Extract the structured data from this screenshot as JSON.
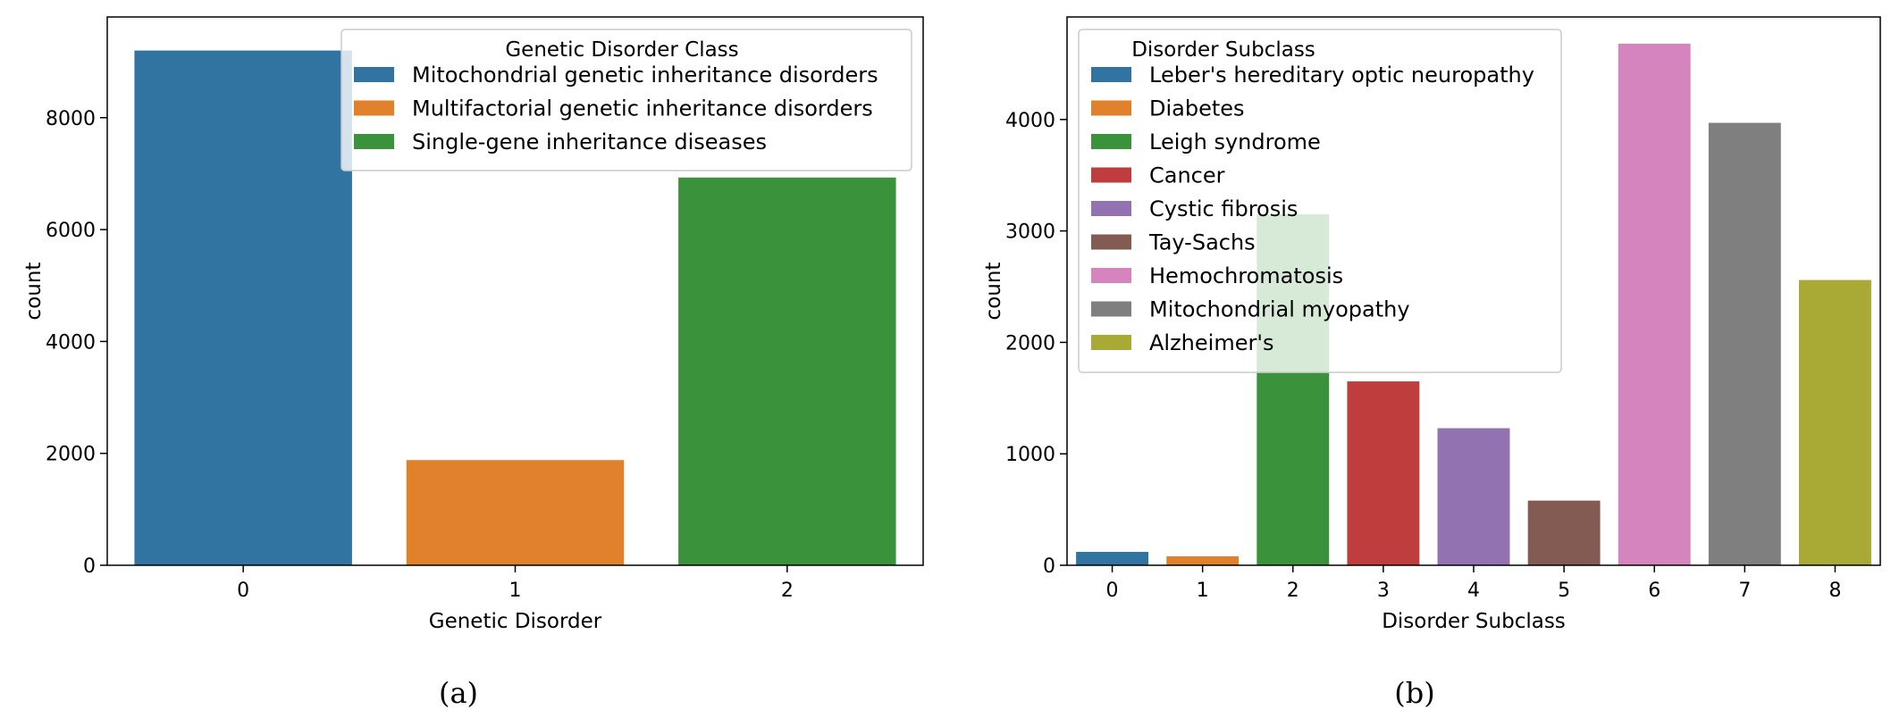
{
  "panels": [
    "(a)",
    "(b)"
  ],
  "chart_data": [
    {
      "type": "bar",
      "xlabel": "Genetic Disorder",
      "ylabel": "count",
      "categories": [
        "0",
        "1",
        "2"
      ],
      "values": [
        9200,
        1880,
        6930
      ],
      "colors": [
        "#3274a1",
        "#e1812c",
        "#3a923a"
      ],
      "ylim": [
        0,
        9800
      ],
      "yticks": [
        0,
        2000,
        4000,
        6000,
        8000
      ],
      "grid": false,
      "legend": {
        "title": "Genetic Disorder Class",
        "placement": "upper-right",
        "entries": [
          "Mitochondrial genetic inheritance disorders",
          "Multifactorial genetic inheritance disorders",
          "Single-gene inheritance diseases"
        ]
      }
    },
    {
      "type": "bar",
      "xlabel": "Disorder Subclass",
      "ylabel": "count",
      "categories": [
        "0",
        "1",
        "2",
        "3",
        "4",
        "5",
        "6",
        "7",
        "8"
      ],
      "values": [
        120,
        80,
        3150,
        1650,
        1230,
        580,
        4680,
        3970,
        2560
      ],
      "colors": [
        "#3274a1",
        "#e1812c",
        "#3a923a",
        "#c03d3e",
        "#9372b2",
        "#845b53",
        "#d684bd",
        "#7f7f7f",
        "#a9aa35"
      ],
      "ylim": [
        0,
        4920
      ],
      "yticks": [
        0,
        1000,
        2000,
        3000,
        4000
      ],
      "grid": false,
      "legend": {
        "title": "Disorder Subclass",
        "placement": "upper-left",
        "entries": [
          "Leber's hereditary optic neuropathy",
          "Diabetes",
          "Leigh syndrome",
          "Cancer",
          "Cystic fibrosis",
          "Tay-Sachs",
          "Hemochromatosis",
          "Mitochondrial myopathy",
          "Alzheimer's"
        ]
      }
    }
  ]
}
